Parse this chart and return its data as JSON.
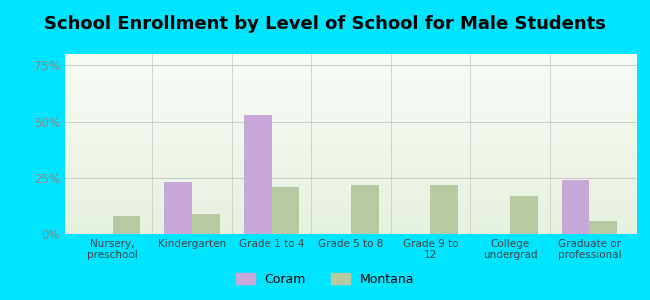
{
  "title": "School Enrollment by Level of School for Male Students",
  "categories": [
    "Nursery,\npreschool",
    "Kindergarten",
    "Grade 1 to 4",
    "Grade 5 to 8",
    "Grade 9 to\n12",
    "College\nundergrad",
    "Graduate or\nprofessional"
  ],
  "coram": [
    0,
    23,
    53,
    0,
    0,
    0,
    24
  ],
  "montana": [
    8,
    9,
    21,
    22,
    22,
    17,
    6
  ],
  "coram_color": "#c8a8d8",
  "montana_color": "#b8c8a0",
  "bar_width": 0.35,
  "ylim": [
    0,
    80
  ],
  "yticks": [
    0,
    25,
    50,
    75
  ],
  "ytick_labels": [
    "0%",
    "25%",
    "50%",
    "75%"
  ],
  "legend_labels": [
    "Coram",
    "Montana"
  ],
  "title_fontsize": 13,
  "background_color": "#00e5ff",
  "grid_color": "#cccccc",
  "tick_color": "#888888"
}
